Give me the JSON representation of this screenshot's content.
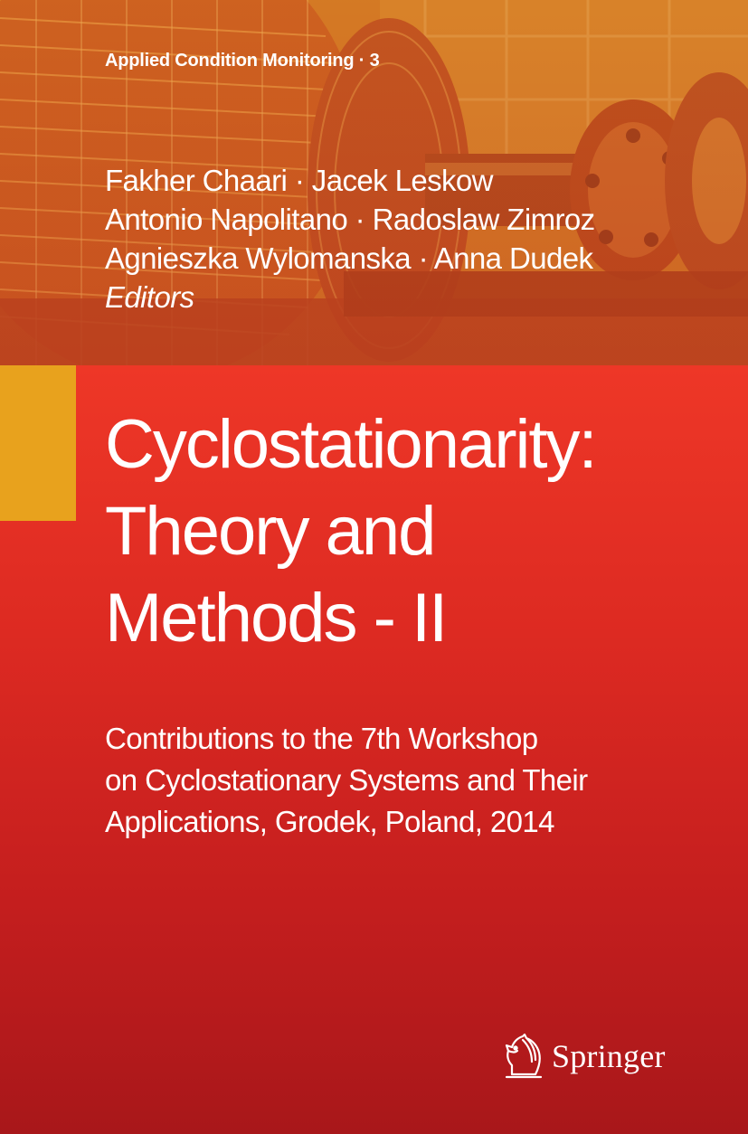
{
  "series": {
    "label": "Applied Condition Monitoring · 3"
  },
  "editors": {
    "lines": [
      "Fakher Chaari · Jacek Leskow",
      "Antonio Napolitano · Radoslaw Zimroz",
      "Agnieszka Wylomanska · Anna Dudek"
    ],
    "role": "Editors"
  },
  "title": {
    "lines": [
      "Cyclostationarity:",
      "Theory and",
      "Methods - II"
    ]
  },
  "subtitle": {
    "lines": [
      "Contributions to the 7th Workshop",
      "on Cyclostationary Systems and Their",
      "Applications, Grodek, Poland, 2014"
    ]
  },
  "publisher": {
    "name": "Springer",
    "logo_icon": "horse-head-icon"
  },
  "colors": {
    "panel_red": "#e0301f",
    "accent_gold": "#e8a21d",
    "text": "#ffffff"
  }
}
